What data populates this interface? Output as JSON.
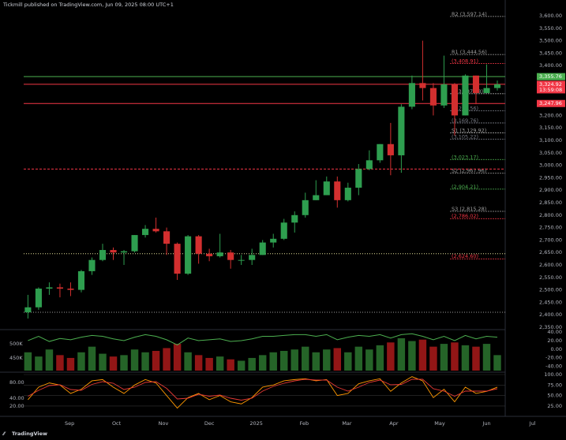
{
  "header": {
    "text": "Tickmill published on TradingView.com, Jun 09, 2025 08:00 UTC+1"
  },
  "footer": {
    "logo": "TradingView"
  },
  "chart_data": [
    {
      "type": "candlestick",
      "up_color": "#2e9e4f",
      "down_color": "#d32f2f",
      "x": [
        0,
        1,
        2,
        3,
        4,
        5,
        6,
        7,
        8,
        9,
        10,
        11,
        12,
        13,
        14,
        15,
        16,
        17,
        18,
        19,
        20,
        21,
        22,
        23,
        24,
        25,
        26,
        27,
        28,
        29,
        30,
        31,
        32,
        33,
        34,
        35,
        36,
        37,
        38,
        39,
        40,
        41,
        42,
        43,
        44
      ],
      "open": [
        2410,
        2430,
        2505,
        2510,
        2505,
        2500,
        2575,
        2620,
        2660,
        2650,
        2655,
        2720,
        2745,
        2735,
        2685,
        2565,
        2715,
        2645,
        2635,
        2650,
        2620,
        2620,
        2640,
        2690,
        2705,
        2770,
        2800,
        2860,
        2880,
        2935,
        2860,
        2910,
        2985,
        3020,
        3085,
        3040,
        3235,
        3330,
        3310,
        3240,
        3325,
        3200,
        3360,
        3290,
        3310
      ],
      "high": [
        2480,
        2510,
        2530,
        2525,
        2530,
        2580,
        2630,
        2685,
        2670,
        2660,
        2720,
        2760,
        2790,
        2750,
        2690,
        2720,
        2720,
        2665,
        2725,
        2660,
        2640,
        2665,
        2700,
        2725,
        2785,
        2815,
        2890,
        2940,
        2955,
        2955,
        2930,
        3005,
        3060,
        3085,
        3170,
        3245,
        3360,
        3500,
        3330,
        3440,
        3330,
        3365,
        3360,
        3405,
        3340
      ],
      "low": [
        2385,
        2420,
        2480,
        2470,
        2475,
        2490,
        2560,
        2615,
        2620,
        2600,
        2650,
        2710,
        2730,
        2640,
        2540,
        2560,
        2605,
        2615,
        2630,
        2585,
        2600,
        2600,
        2640,
        2670,
        2700,
        2730,
        2790,
        2860,
        2880,
        2830,
        2855,
        2880,
        2980,
        3010,
        2960,
        2970,
        3225,
        3260,
        3200,
        3230,
        3120,
        3200,
        3245,
        3290,
        3300
      ],
      "close": [
        2430,
        2505,
        2510,
        2505,
        2500,
        2575,
        2620,
        2660,
        2650,
        2655,
        2720,
        2745,
        2735,
        2685,
        2565,
        2715,
        2645,
        2635,
        2650,
        2620,
        2620,
        2640,
        2690,
        2705,
        2770,
        2800,
        2860,
        2880,
        2935,
        2860,
        2910,
        2985,
        3020,
        3085,
        3040,
        3235,
        3330,
        3310,
        3240,
        3325,
        3200,
        3360,
        3290,
        3310,
        3324.92
      ],
      "xlim": [
        -0.4,
        47.7
      ],
      "xticks": [
        {
          "value": 3.9,
          "label": "Sep"
        },
        {
          "value": 8.3,
          "label": "Oct"
        },
        {
          "value": 12.7,
          "label": "Nov"
        },
        {
          "value": 17,
          "label": "Dec"
        },
        {
          "value": 21.4,
          "label": "2025"
        },
        {
          "value": 25.9,
          "label": "Feb"
        },
        {
          "value": 29.9,
          "label": "Mar"
        },
        {
          "value": 34.3,
          "label": "Apr"
        },
        {
          "value": 38.6,
          "label": "May"
        },
        {
          "value": 43,
          "label": "Jun"
        },
        {
          "value": 47.3,
          "label": "Jul"
        }
      ],
      "ylim": [
        2350,
        3600
      ],
      "yticks": [
        {
          "value": 3600,
          "label": "3,600.00"
        },
        {
          "value": 3550,
          "label": "3,550.00"
        },
        {
          "value": 3500,
          "label": "3,500.00"
        },
        {
          "value": 3450,
          "label": "3,450.00"
        },
        {
          "value": 3400,
          "label": "3,400.00"
        },
        {
          "value": 3350,
          "label": "3,350.00"
        },
        {
          "value": 3300,
          "label": "3,300.00"
        },
        {
          "value": 3250,
          "label": "3,250.00"
        },
        {
          "value": 3200,
          "label": "3,200.00"
        },
        {
          "value": 3150,
          "label": "3,150.00"
        },
        {
          "value": 3100,
          "label": "3,100.00"
        },
        {
          "value": 3050,
          "label": "3,050.00"
        },
        {
          "value": 3000,
          "label": "3,000.00"
        },
        {
          "value": 2950,
          "label": "2,950.00"
        },
        {
          "value": 2900,
          "label": "2,900.00"
        },
        {
          "value": 2850,
          "label": "2,850.00"
        },
        {
          "value": 2800,
          "label": "2,800.00"
        },
        {
          "value": 2750,
          "label": "2,750.00"
        },
        {
          "value": 2700,
          "label": "2,700.00"
        },
        {
          "value": 2650,
          "label": "2,650.00"
        },
        {
          "value": 2600,
          "label": "2,600.00"
        },
        {
          "value": 2550,
          "label": "2,550.00"
        },
        {
          "value": 2500,
          "label": "2,500.00"
        },
        {
          "value": 2450,
          "label": "2,450.00"
        },
        {
          "value": 2400,
          "label": "2,400.00"
        },
        {
          "value": 2350,
          "label": "2,350.00"
        }
      ],
      "price_lines": [
        {
          "value": 3355.76,
          "label": "3,355.76",
          "color": "#4caf50"
        },
        {
          "value": 3324.92,
          "label": "3,324.92",
          "time": "13:59:08",
          "color": "#f23645"
        },
        {
          "value": 3247.96,
          "label": "3,247.96",
          "color": "#f23645"
        },
        {
          "value": 2985,
          "color": "#f23645",
          "style": "dashed"
        },
        {
          "value": 2645,
          "color": "#e6e29a",
          "style": "dotted"
        },
        {
          "value": 2410,
          "color": "#9e9e9e",
          "style": "dotted"
        }
      ],
      "pivots": [
        {
          "value": 3597.14,
          "label": "R2 (3,597.14)",
          "color": "#9e9e9e"
        },
        {
          "value": 3444.56,
          "label": "R1 (3,444.56)",
          "color": "#9e9e9e"
        },
        {
          "value": 3408.91,
          "label": "(3,408.91)",
          "color": "#f23645"
        },
        {
          "value": 3287.38,
          "label": "P (3,287.38)",
          "color": "#9e9e9e"
        },
        {
          "value": 3218.56,
          "label": "(3,218.56)",
          "color": "#787b86"
        },
        {
          "value": 3169.76,
          "label": "(3,169.76)",
          "color": "#787b86"
        },
        {
          "value": 3129.92,
          "label": "S1 (3,129.92)",
          "color": "#9e9e9e"
        },
        {
          "value": 3105.22,
          "label": "(3,105.22)",
          "color": "#787b86"
        },
        {
          "value": 3023.17,
          "label": "(3,023.17)",
          "color": "#4caf50"
        },
        {
          "value": 2967.96,
          "label": "S2 (2,967.96)",
          "color": "#9e9e9e"
        },
        {
          "value": 2904.21,
          "label": "(2,904.21)",
          "color": "#4caf50"
        },
        {
          "value": 2815.28,
          "label": "S3 (2,815.28)",
          "color": "#9e9e9e"
        },
        {
          "value": 2786.02,
          "label": "(2,786.02)",
          "color": "#f23645"
        },
        {
          "value": 2624.6,
          "label": "(2,624.60)",
          "color": "#f23645"
        }
      ]
    },
    {
      "type": "volume",
      "up_color": "#2e7d32",
      "down_color": "#b71c1c",
      "values": [
        470000,
        455000,
        480000,
        460000,
        450000,
        470000,
        490000,
        465000,
        455000,
        460000,
        480000,
        470000,
        475000,
        485000,
        500000,
        470000,
        460000,
        450000,
        455000,
        445000,
        440000,
        450000,
        460000,
        470000,
        475000,
        480000,
        490000,
        470000,
        480000,
        485000,
        470000,
        490000,
        480000,
        495000,
        505000,
        520000,
        510000,
        515000,
        490000,
        500000,
        505000,
        495000,
        490000,
        500000,
        460000
      ],
      "ylim": [
        405000,
        545000
      ],
      "yticks": [
        {
          "value": 500000,
          "label": "500K"
        },
        {
          "value": 450000,
          "label": "450K"
        }
      ],
      "series": [
        {
          "color": "#4caf50",
          "axis": "y2",
          "values": [
            20,
            30,
            18,
            25,
            22,
            28,
            32,
            30,
            24,
            20,
            28,
            34,
            30,
            22,
            10,
            26,
            20,
            22,
            24,
            18,
            20,
            24,
            30,
            30,
            32,
            34,
            34,
            30,
            34,
            22,
            28,
            32,
            30,
            34,
            26,
            34,
            36,
            30,
            22,
            30,
            20,
            32,
            24,
            30,
            28
          ]
        }
      ],
      "y2lim": [
        -50,
        42
      ],
      "y2ticks": [
        {
          "value": 40,
          "label": "40.00"
        },
        {
          "value": 20,
          "label": "20.00"
        },
        {
          "value": 0,
          "label": "0.00"
        },
        {
          "value": -20,
          "label": "-20.00"
        },
        {
          "value": -40,
          "label": "-40.00"
        }
      ]
    },
    {
      "type": "line",
      "series": [
        {
          "color": "#ff9800",
          "values": [
            40,
            70,
            80,
            75,
            55,
            65,
            85,
            88,
            70,
            55,
            75,
            88,
            80,
            50,
            20,
            45,
            55,
            40,
            50,
            35,
            30,
            45,
            70,
            75,
            85,
            88,
            90,
            85,
            88,
            50,
            55,
            78,
            85,
            90,
            60,
            80,
            95,
            85,
            45,
            65,
            35,
            70,
            55,
            60,
            70
          ]
        },
        {
          "color": "#e53935",
          "axis": "y2",
          "values": [
            45,
            60,
            72,
            74,
            62,
            60,
            75,
            82,
            78,
            62,
            68,
            80,
            82,
            65,
            38,
            40,
            50,
            45,
            48,
            40,
            35,
            40,
            58,
            70,
            78,
            84,
            88,
            86,
            86,
            68,
            58,
            68,
            80,
            86,
            74,
            75,
            88,
            88,
            64,
            58,
            45,
            58,
            58,
            58,
            64
          ]
        }
      ],
      "ylim": [
        6,
        100
      ],
      "yticks": [
        {
          "value": 100,
          "label": "100.00"
        },
        {
          "value": 75,
          "label": "75.00"
        },
        {
          "value": 50,
          "label": "50.00"
        },
        {
          "value": 25,
          "label": "25.00"
        }
      ],
      "y2lim": [
        0,
        100
      ],
      "y2ticks": [
        {
          "value": 80,
          "label": "80.00"
        },
        {
          "value": 40,
          "label": "40.00"
        },
        {
          "value": 20,
          "label": "20.00"
        }
      ]
    }
  ]
}
